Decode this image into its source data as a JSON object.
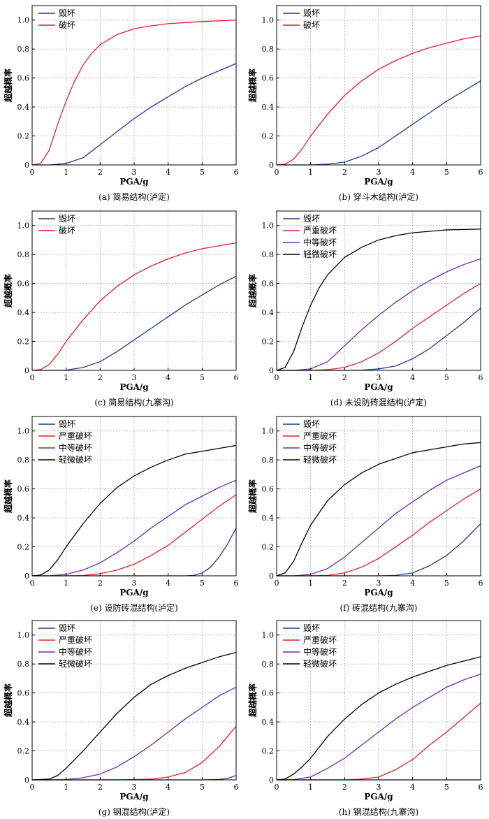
{
  "chart_data": [
    {
      "type": "line",
      "caption": "(a) 简易结构(泸定)",
      "xlabel": "PGA/g",
      "ylabel": "超越概率",
      "xlim": [
        0,
        6
      ],
      "ylim": [
        0,
        1.1
      ],
      "xticks": [
        "0",
        "1",
        "2",
        "3",
        "4",
        "5",
        "6"
      ],
      "yticks": [
        "0",
        "0.2",
        "0.4",
        "0.6",
        "0.8",
        "1.0"
      ],
      "grid": true,
      "legend": "top-left",
      "series": [
        {
          "name": "毁坏",
          "color": "#1f3a93",
          "x": [
            0,
            0.5,
            1,
            1.5,
            2,
            2.5,
            3,
            3.5,
            4,
            4.5,
            5,
            5.5,
            6
          ],
          "y": [
            0,
            0,
            0.01,
            0.05,
            0.14,
            0.23,
            0.32,
            0.4,
            0.47,
            0.54,
            0.6,
            0.65,
            0.7
          ]
        },
        {
          "name": "破坏",
          "color": "#e0202a",
          "x": [
            0,
            0.25,
            0.5,
            0.75,
            1,
            1.25,
            1.5,
            1.75,
            2,
            2.5,
            3,
            3.5,
            4,
            5,
            6
          ],
          "y": [
            0,
            0.01,
            0.1,
            0.28,
            0.44,
            0.58,
            0.69,
            0.77,
            0.83,
            0.9,
            0.94,
            0.96,
            0.975,
            0.99,
            1.0
          ]
        }
      ]
    },
    {
      "type": "line",
      "caption": "(b) 穿斗木结构(泸定)",
      "xlabel": "PGA/g",
      "ylabel": "超越概率",
      "xlim": [
        0,
        6
      ],
      "ylim": [
        0,
        1.1
      ],
      "xticks": [
        "0",
        "1",
        "2",
        "3",
        "4",
        "5",
        "6"
      ],
      "yticks": [
        "0",
        "0.2",
        "0.4",
        "0.6",
        "0.8",
        "1.0"
      ],
      "grid": true,
      "legend": "top-left",
      "series": [
        {
          "name": "毁坏",
          "color": "#1f3a93",
          "x": [
            0,
            0.5,
            1,
            1.5,
            2,
            2.5,
            3,
            3.5,
            4,
            4.5,
            5,
            5.5,
            6
          ],
          "y": [
            0,
            0,
            0,
            0.005,
            0.02,
            0.06,
            0.12,
            0.2,
            0.28,
            0.36,
            0.44,
            0.51,
            0.58
          ]
        },
        {
          "name": "破坏",
          "color": "#e0202a",
          "x": [
            0,
            0.25,
            0.5,
            0.75,
            1,
            1.5,
            2,
            2.5,
            3,
            3.5,
            4,
            4.5,
            5,
            5.5,
            6
          ],
          "y": [
            0,
            0.005,
            0.04,
            0.11,
            0.2,
            0.35,
            0.48,
            0.58,
            0.66,
            0.72,
            0.77,
            0.81,
            0.84,
            0.87,
            0.89
          ]
        }
      ]
    },
    {
      "type": "line",
      "caption": "(c) 简易结构(九寨沟)",
      "xlabel": "PGA/g",
      "ylabel": "超越概率",
      "xlim": [
        0,
        6
      ],
      "ylim": [
        0,
        1.1
      ],
      "xticks": [
        "0",
        "1",
        "2",
        "3",
        "4",
        "5",
        "6"
      ],
      "yticks": [
        "0",
        "0.2",
        "0.4",
        "0.6",
        "0.8",
        "1.0"
      ],
      "grid": true,
      "legend": "top-left",
      "series": [
        {
          "name": "毁坏",
          "color": "#1f3a93",
          "x": [
            0,
            0.5,
            1,
            1.5,
            2,
            2.5,
            3,
            3.5,
            4,
            4.5,
            5,
            5.5,
            6
          ],
          "y": [
            0,
            0,
            0.002,
            0.02,
            0.06,
            0.13,
            0.21,
            0.29,
            0.37,
            0.45,
            0.52,
            0.59,
            0.65
          ]
        },
        {
          "name": "破坏",
          "color": "#e0202a",
          "x": [
            0,
            0.25,
            0.5,
            0.75,
            1,
            1.5,
            2,
            2.5,
            3,
            3.5,
            4,
            4.5,
            5,
            5.5,
            6
          ],
          "y": [
            0,
            0.005,
            0.04,
            0.11,
            0.2,
            0.35,
            0.48,
            0.58,
            0.66,
            0.72,
            0.77,
            0.81,
            0.84,
            0.86,
            0.88
          ]
        }
      ]
    },
    {
      "type": "line",
      "caption": "(d) 未设防砖混结构(泸定)",
      "xlabel": "PGA/g",
      "ylabel": "超越概率",
      "xlim": [
        0,
        6
      ],
      "ylim": [
        0,
        1.1
      ],
      "xticks": [
        "0",
        "1",
        "2",
        "3",
        "4",
        "5",
        "6"
      ],
      "yticks": [
        "0",
        "0.2",
        "0.4",
        "0.6",
        "0.8",
        "1.0"
      ],
      "grid": true,
      "legend": "top-left",
      "series": [
        {
          "name": "毁坏",
          "color": "#1f3a93",
          "x": [
            0,
            1,
            2,
            2.5,
            3,
            3.5,
            4,
            4.5,
            5,
            5.5,
            6
          ],
          "y": [
            0,
            0,
            0,
            0.002,
            0.01,
            0.03,
            0.08,
            0.15,
            0.24,
            0.33,
            0.43
          ]
        },
        {
          "name": "严重破坏",
          "color": "#e0202a",
          "x": [
            0,
            1,
            1.5,
            2,
            2.5,
            3,
            3.5,
            4,
            4.5,
            5,
            5.5,
            6
          ],
          "y": [
            0,
            0,
            0.005,
            0.02,
            0.06,
            0.12,
            0.2,
            0.29,
            0.37,
            0.45,
            0.53,
            0.6
          ]
        },
        {
          "name": "中等破坏",
          "color": "#6a2ca8",
          "x": [
            0,
            0.5,
            1,
            1.5,
            2,
            2.5,
            3,
            3.5,
            4,
            4.5,
            5,
            5.5,
            6
          ],
          "y": [
            0,
            0,
            0.01,
            0.06,
            0.17,
            0.28,
            0.38,
            0.47,
            0.55,
            0.62,
            0.68,
            0.73,
            0.77
          ]
        },
        {
          "name": "轻微破坏",
          "color": "#000000",
          "x": [
            0,
            0.25,
            0.5,
            0.75,
            1,
            1.25,
            1.5,
            2,
            2.5,
            3,
            3.5,
            4,
            4.5,
            5,
            6
          ],
          "y": [
            0,
            0.02,
            0.13,
            0.3,
            0.45,
            0.57,
            0.66,
            0.78,
            0.85,
            0.9,
            0.93,
            0.95,
            0.96,
            0.97,
            0.975
          ]
        }
      ]
    },
    {
      "type": "line",
      "caption": "(e) 设防砖混结构(泸定)",
      "xlabel": "PGA/g",
      "ylabel": "超越概率",
      "xlim": [
        0,
        6
      ],
      "ylim": [
        0,
        1.1
      ],
      "xticks": [
        "0",
        "1",
        "2",
        "3",
        "4",
        "5",
        "6"
      ],
      "yticks": [
        "0",
        "0.2",
        "0.4",
        "0.6",
        "0.8",
        "1.0"
      ],
      "grid": true,
      "legend": "top-left",
      "series": [
        {
          "name": "毁坏",
          "color": "#1f3a93",
          "x": [
            0,
            2,
            4,
            4.5,
            4.75,
            5,
            5.25,
            5.5,
            5.75,
            6
          ],
          "y": [
            0,
            0,
            0,
            0,
            0.003,
            0.02,
            0.06,
            0.13,
            0.22,
            0.33
          ]
        },
        {
          "name": "严重破坏",
          "color": "#e0202a",
          "x": [
            0,
            1,
            1.5,
            2,
            2.5,
            3,
            3.5,
            4,
            4.5,
            5,
            5.5,
            6
          ],
          "y": [
            0,
            0,
            0.002,
            0.015,
            0.04,
            0.08,
            0.14,
            0.21,
            0.3,
            0.39,
            0.48,
            0.56
          ]
        },
        {
          "name": "中等破坏",
          "color": "#6a2ca8",
          "x": [
            0,
            0.5,
            1,
            1.5,
            2,
            2.5,
            3,
            3.5,
            4,
            4.5,
            5,
            5.5,
            6
          ],
          "y": [
            0,
            0,
            0.01,
            0.04,
            0.09,
            0.16,
            0.24,
            0.33,
            0.41,
            0.49,
            0.55,
            0.61,
            0.66
          ]
        },
        {
          "name": "轻微破坏",
          "color": "#000000",
          "x": [
            0,
            0.25,
            0.5,
            0.75,
            1,
            1.5,
            2,
            2.5,
            3,
            3.5,
            4,
            4.5,
            5,
            5.5,
            6
          ],
          "y": [
            0,
            0.005,
            0.04,
            0.11,
            0.2,
            0.36,
            0.5,
            0.61,
            0.69,
            0.75,
            0.8,
            0.84,
            0.86,
            0.88,
            0.9
          ]
        }
      ]
    },
    {
      "type": "line",
      "caption": "(f) 砖混结构(九寨沟)",
      "xlabel": "PGA/g",
      "ylabel": "超越概率",
      "xlim": [
        0,
        6
      ],
      "ylim": [
        0,
        1.1
      ],
      "xticks": [
        "0",
        "1",
        "2",
        "3",
        "4",
        "5",
        "6"
      ],
      "yticks": [
        "0",
        "0.2",
        "0.4",
        "0.6",
        "0.8",
        "1.0"
      ],
      "grid": true,
      "legend": "top-left",
      "series": [
        {
          "name": "毁坏",
          "color": "#1f3a93",
          "x": [
            0,
            2,
            3,
            3.5,
            4,
            4.5,
            5,
            5.5,
            6
          ],
          "y": [
            0,
            0,
            0,
            0.003,
            0.02,
            0.07,
            0.14,
            0.24,
            0.36
          ]
        },
        {
          "name": "严重破坏",
          "color": "#e0202a",
          "x": [
            0,
            1,
            1.5,
            2,
            2.5,
            3,
            3.5,
            4,
            4.5,
            5,
            5.5,
            6
          ],
          "y": [
            0,
            0,
            0.003,
            0.02,
            0.06,
            0.12,
            0.2,
            0.28,
            0.37,
            0.45,
            0.53,
            0.6
          ]
        },
        {
          "name": "中等破坏",
          "color": "#6a2ca8",
          "x": [
            0,
            0.5,
            1,
            1.5,
            2,
            2.5,
            3,
            3.5,
            4,
            4.5,
            5,
            5.5,
            6
          ],
          "y": [
            0,
            0,
            0.01,
            0.05,
            0.13,
            0.23,
            0.33,
            0.43,
            0.51,
            0.59,
            0.66,
            0.71,
            0.76
          ]
        },
        {
          "name": "轻微破坏",
          "color": "#000000",
          "x": [
            0,
            0.25,
            0.5,
            0.75,
            1,
            1.5,
            2,
            2.5,
            3,
            3.5,
            4,
            4.5,
            5,
            5.5,
            6
          ],
          "y": [
            0,
            0.02,
            0.1,
            0.23,
            0.35,
            0.52,
            0.63,
            0.71,
            0.77,
            0.81,
            0.85,
            0.87,
            0.89,
            0.91,
            0.92
          ]
        }
      ]
    },
    {
      "type": "line",
      "caption": "(g) 钢混结构(泸定)",
      "xlabel": "PGA/g",
      "ylabel": "超越概率",
      "xlim": [
        0,
        6
      ],
      "ylim": [
        0,
        1.1
      ],
      "xticks": [
        "0",
        "1",
        "2",
        "3",
        "4",
        "5",
        "6"
      ],
      "yticks": [
        "0",
        "0.2",
        "0.4",
        "0.6",
        "0.8",
        "1.0"
      ],
      "grid": true,
      "legend": "top-left",
      "series": [
        {
          "name": "毁坏",
          "color": "#1f3a93",
          "x": [
            0,
            3,
            5,
            5.5,
            5.75,
            6
          ],
          "y": [
            0,
            0,
            0,
            0.003,
            0.01,
            0.03
          ]
        },
        {
          "name": "严重破坏",
          "color": "#e0202a",
          "x": [
            0,
            2,
            3,
            3.5,
            4,
            4.5,
            5,
            5.5,
            6
          ],
          "y": [
            0,
            0,
            0.002,
            0.005,
            0.02,
            0.05,
            0.12,
            0.23,
            0.37
          ]
        },
        {
          "name": "中等破坏",
          "color": "#6a2ca8",
          "x": [
            0,
            0.5,
            1,
            1.5,
            2,
            2.5,
            3,
            3.5,
            4,
            4.5,
            5,
            5.5,
            6
          ],
          "y": [
            0,
            0,
            0.002,
            0.015,
            0.04,
            0.09,
            0.16,
            0.24,
            0.33,
            0.42,
            0.5,
            0.58,
            0.64
          ]
        },
        {
          "name": "轻微破坏",
          "color": "#000000",
          "x": [
            0,
            0.5,
            0.75,
            1,
            1.5,
            2,
            2.5,
            3,
            3.5,
            4,
            4.5,
            5,
            5.5,
            6
          ],
          "y": [
            0,
            0.005,
            0.03,
            0.08,
            0.2,
            0.33,
            0.46,
            0.57,
            0.66,
            0.72,
            0.77,
            0.81,
            0.85,
            0.88
          ]
        }
      ]
    },
    {
      "type": "line",
      "caption": "(h) 钢混结构(九寨沟)",
      "xlabel": "PGA/g",
      "ylabel": "超越概率",
      "xlim": [
        0,
        6
      ],
      "ylim": [
        0,
        1.1
      ],
      "xticks": [
        "0",
        "1",
        "2",
        "3",
        "4",
        "5",
        "6"
      ],
      "yticks": [
        "0",
        "0.2",
        "0.4",
        "0.6",
        "0.8",
        "1.0"
      ],
      "grid": true,
      "legend": "top-left",
      "series": [
        {
          "name": "毁坏",
          "color": "#1f3a93",
          "x": [
            0,
            6
          ],
          "y": [
            0,
            0
          ]
        },
        {
          "name": "严重破坏",
          "color": "#e0202a",
          "x": [
            0,
            2,
            2.5,
            3,
            3.5,
            4,
            4.5,
            5,
            5.5,
            6
          ],
          "y": [
            0,
            0,
            0.005,
            0.02,
            0.07,
            0.14,
            0.24,
            0.33,
            0.43,
            0.53
          ]
        },
        {
          "name": "中等破坏",
          "color": "#6a2ca8",
          "x": [
            0,
            0.5,
            1,
            1.5,
            2,
            2.5,
            3,
            3.5,
            4,
            4.5,
            5,
            5.5,
            6
          ],
          "y": [
            0,
            0.002,
            0.02,
            0.08,
            0.15,
            0.24,
            0.33,
            0.42,
            0.5,
            0.57,
            0.64,
            0.69,
            0.73
          ]
        },
        {
          "name": "轻微破坏",
          "color": "#000000",
          "x": [
            0,
            0.25,
            0.5,
            0.75,
            1,
            1.5,
            2,
            2.5,
            3,
            3.5,
            4,
            4.5,
            5,
            5.5,
            6
          ],
          "y": [
            0,
            0.005,
            0.04,
            0.09,
            0.15,
            0.3,
            0.42,
            0.52,
            0.6,
            0.66,
            0.71,
            0.75,
            0.79,
            0.82,
            0.85
          ]
        }
      ]
    }
  ]
}
